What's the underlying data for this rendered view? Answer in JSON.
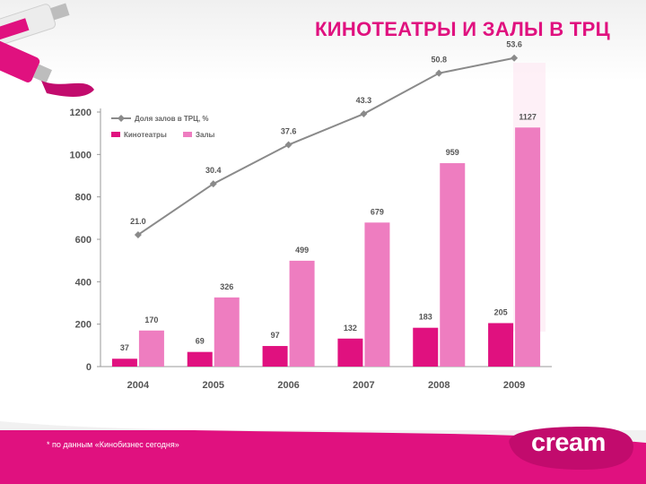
{
  "slide": {
    "title": "КИНОТЕАТРЫ И ЗАЛЫ В ТРЦ",
    "footnote": "* по данным «Кинобизнес сегодня»",
    "logo_text": "cream",
    "accent_color": "#e0117f"
  },
  "chart_data": {
    "type": "bar",
    "categories": [
      "2004",
      "2005",
      "2006",
      "2007",
      "2008",
      "2009"
    ],
    "ylim": [
      0,
      1200
    ],
    "yticks": [
      0,
      200,
      400,
      600,
      800,
      1000,
      1200
    ],
    "grid": false,
    "legend_position": "top-left",
    "series": [
      {
        "name": "Кинотеатры",
        "kind": "bar",
        "color": "#e0117f",
        "values": [
          37,
          69,
          97,
          132,
          183,
          205
        ]
      },
      {
        "name": "Залы",
        "kind": "bar",
        "color": "#ee7dc0",
        "values": [
          170,
          326,
          499,
          679,
          959,
          1127
        ]
      },
      {
        "name": "Доля залов в ТРЦ, %",
        "kind": "line",
        "color": "#8a8a8a",
        "values": [
          21.0,
          30.4,
          37.6,
          43.3,
          50.8,
          53.6
        ]
      }
    ]
  }
}
